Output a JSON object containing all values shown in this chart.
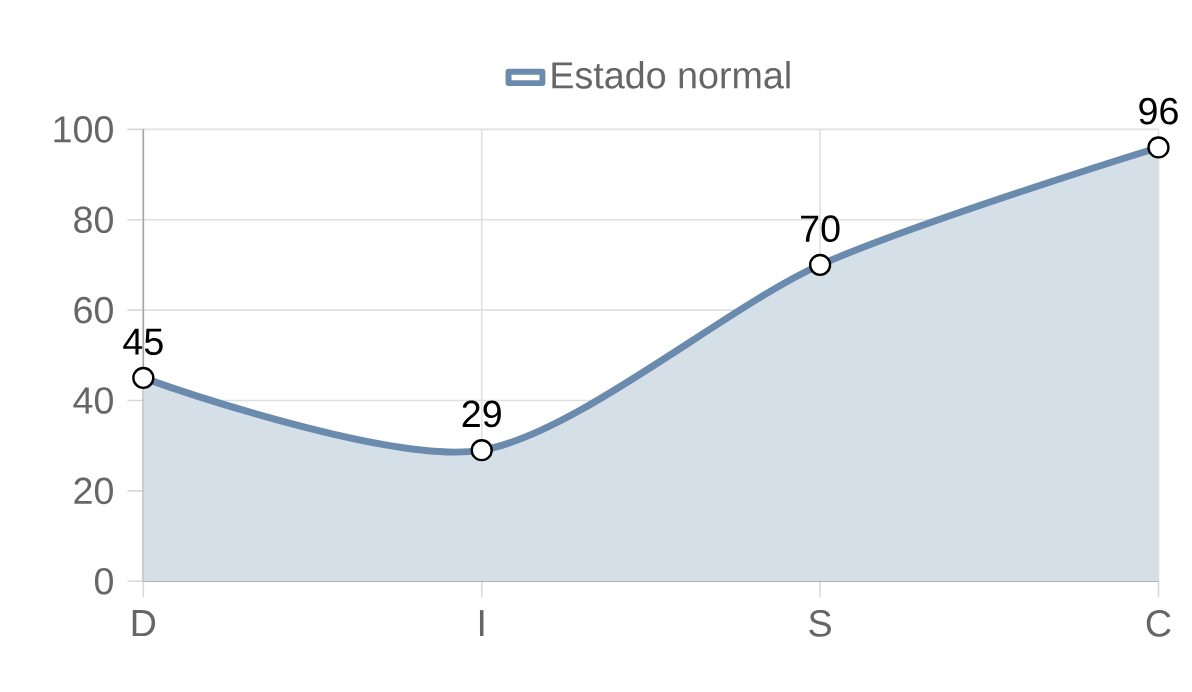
{
  "chart_data": {
    "type": "area",
    "categories": [
      "D",
      "I",
      "S",
      "C"
    ],
    "series": [
      {
        "name": "Estado normal",
        "color": "#6a8bad",
        "values": [
          45,
          29,
          70,
          96
        ]
      }
    ],
    "ylim": [
      0,
      100
    ],
    "yticks": [
      0,
      20,
      40,
      60,
      80,
      100
    ],
    "grid": true,
    "legend": "top",
    "marker": "circle",
    "data_labels": true
  }
}
